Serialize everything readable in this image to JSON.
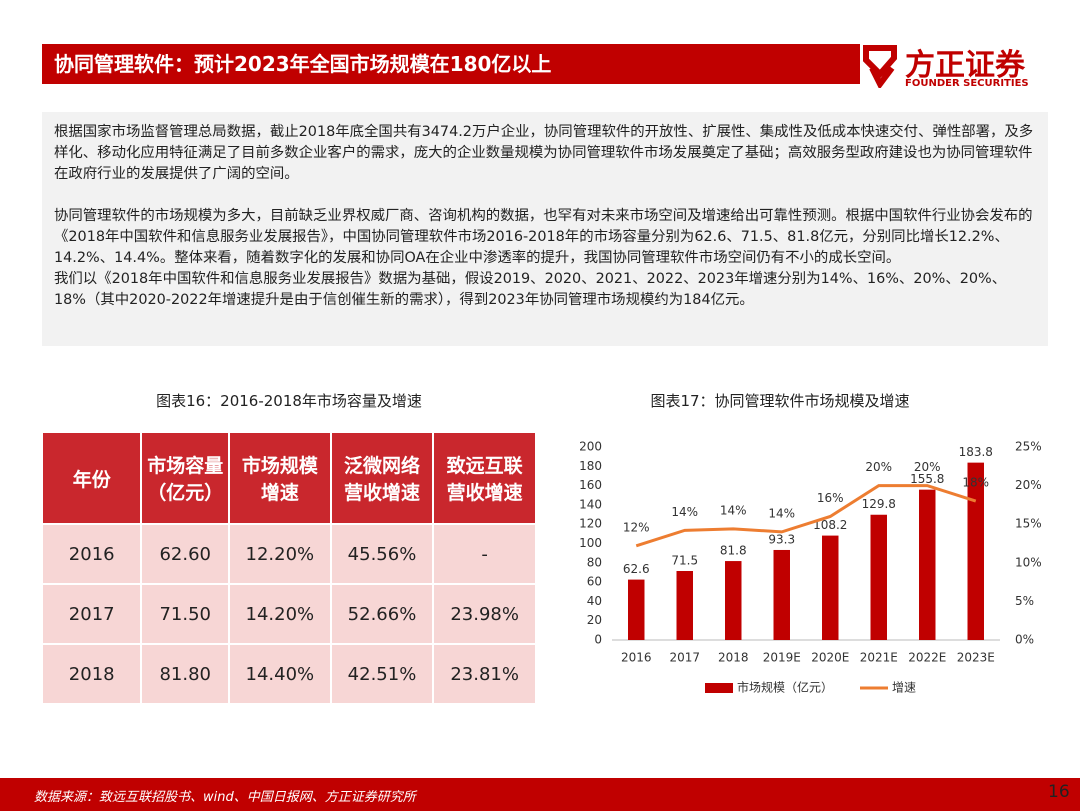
{
  "header": {
    "title": "协同管理软件：预计2023年全国市场规模在180亿以上",
    "logo_cn": "方正证券",
    "logo_en": "FOUNDER SECURITIES"
  },
  "paragraphs": [
    "根据国家市场监督管理总局数据，截止2018年底全国共有3474.2万户企业，协同管理软件的开放性、扩展性、集成性及低成本快速交付、弹性部署，及多样化、移动化应用特征满足了目前多数企业客户的需求，庞大的企业数量规模为协同管理软件市场发展奠定了基础；高效服务型政府建设也为协同管理软件在政府行业的发展提供了广阔的空间。",
    "协同管理软件的市场规模为多大，目前缺乏业界权威厂商、咨询机构的数据，也罕有对未来市场空间及增速给出可靠性预测。根据中国软件行业协会发布的《2018年中国软件和信息服务业发展报告》，中国协同管理软件市场2016-2018年的市场容量分别为62.6、71.5、81.8亿元，分别同比增长12.2%、14.2%、14.4%。整体来看，随着数字化的发展和协同OA在企业中渗透率的提升，我国协同管理软件市场空间仍有不小的成长空间。",
    "我们以《2018年中国软件和信息服务业发展报告》数据为基础，假设2019、2020、2021、2022、2023年增速分别为14%、16%、20%、20%、18%（其中2020-2022年增速提升是由于信创催生新的需求），得到2023年协同管理市场规模约为184亿元。"
  ],
  "table": {
    "caption": "图表16：2016-2018年市场容量及增速",
    "header": [
      "年份",
      "市场容量\n（亿元）",
      "市场规模\n增速",
      "泛微网络\n营收增速",
      "致远互联\n营收增速"
    ],
    "rows": [
      [
        "2016",
        "62.60",
        "12.20%",
        "45.56%",
        "-"
      ],
      [
        "2017",
        "71.50",
        "14.20%",
        "52.66%",
        "23.98%"
      ],
      [
        "2018",
        "81.80",
        "14.40%",
        "42.51%",
        "23.81%"
      ]
    ]
  },
  "chart_data": {
    "type": "bar",
    "title": "图表17：协同管理软件市场规模及增速",
    "categories": [
      "2016",
      "2017",
      "2018",
      "2019E",
      "2020E",
      "2021E",
      "2022E",
      "2023E"
    ],
    "series": [
      {
        "name": "市场规模（亿元）",
        "type": "bar",
        "color": "#c00000",
        "values": [
          62.6,
          71.5,
          81.8,
          93.3,
          108.2,
          129.8,
          155.8,
          183.8
        ]
      },
      {
        "name": "增速",
        "type": "line",
        "axis": "y2",
        "color": "#ed7d31",
        "values": [
          12.2,
          14.2,
          14.4,
          14,
          16,
          20,
          20,
          18
        ],
        "value_labels": [
          "12%",
          "14%",
          "14%",
          "14%",
          "16%",
          "20%",
          "20%",
          "18%"
        ]
      }
    ],
    "ylim": [
      0,
      200
    ],
    "yticks": [
      0,
      20,
      40,
      60,
      80,
      100,
      120,
      140,
      160,
      180,
      200
    ],
    "y2lim": [
      0,
      25
    ],
    "y2ticks": [
      {
        "value": 0,
        "label": "0%"
      },
      {
        "value": 5,
        "label": "5%"
      },
      {
        "value": 10,
        "label": "10%"
      },
      {
        "value": 15,
        "label": "15%"
      },
      {
        "value": 20,
        "label": "20%"
      },
      {
        "value": 25,
        "label": "25%"
      }
    ],
    "grid": false,
    "legend": "bottom"
  },
  "footer": {
    "source": "数据来源：致远互联招股书、wind、中国日报网、方正证券研究所",
    "page": "16"
  }
}
